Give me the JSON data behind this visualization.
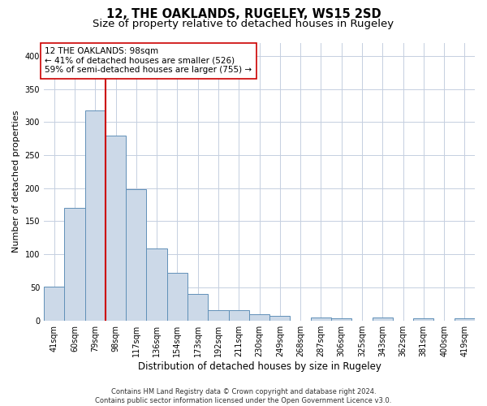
{
  "title": "12, THE OAKLANDS, RUGELEY, WS15 2SD",
  "subtitle": "Size of property relative to detached houses in Rugeley",
  "xlabel": "Distribution of detached houses by size in Rugeley",
  "ylabel": "Number of detached properties",
  "categories": [
    "41sqm",
    "60sqm",
    "79sqm",
    "98sqm",
    "117sqm",
    "136sqm",
    "154sqm",
    "173sqm",
    "192sqm",
    "211sqm",
    "230sqm",
    "249sqm",
    "268sqm",
    "287sqm",
    "306sqm",
    "325sqm",
    "343sqm",
    "362sqm",
    "381sqm",
    "400sqm",
    "419sqm"
  ],
  "values": [
    51,
    170,
    318,
    280,
    199,
    109,
    72,
    40,
    16,
    15,
    9,
    7,
    0,
    5,
    3,
    0,
    5,
    0,
    3,
    0,
    3
  ],
  "bar_color": "#ccd9e8",
  "bar_edge_color": "#6090b8",
  "red_line_x": 2.5,
  "annotation_text": "12 THE OAKLANDS: 98sqm\n← 41% of detached houses are smaller (526)\n59% of semi-detached houses are larger (755) →",
  "annotation_box_color": "white",
  "annotation_box_edge_color": "#cc0000",
  "red_line_color": "#cc0000",
  "ylim": [
    0,
    420
  ],
  "yticks": [
    0,
    50,
    100,
    150,
    200,
    250,
    300,
    350,
    400
  ],
  "grid_color": "#c5cfe0",
  "footer": "Contains HM Land Registry data © Crown copyright and database right 2024.\nContains public sector information licensed under the Open Government Licence v3.0.",
  "title_fontsize": 10.5,
  "subtitle_fontsize": 9.5,
  "xlabel_fontsize": 8.5,
  "ylabel_fontsize": 8,
  "tick_fontsize": 7,
  "annotation_fontsize": 7.5,
  "footer_fontsize": 6
}
